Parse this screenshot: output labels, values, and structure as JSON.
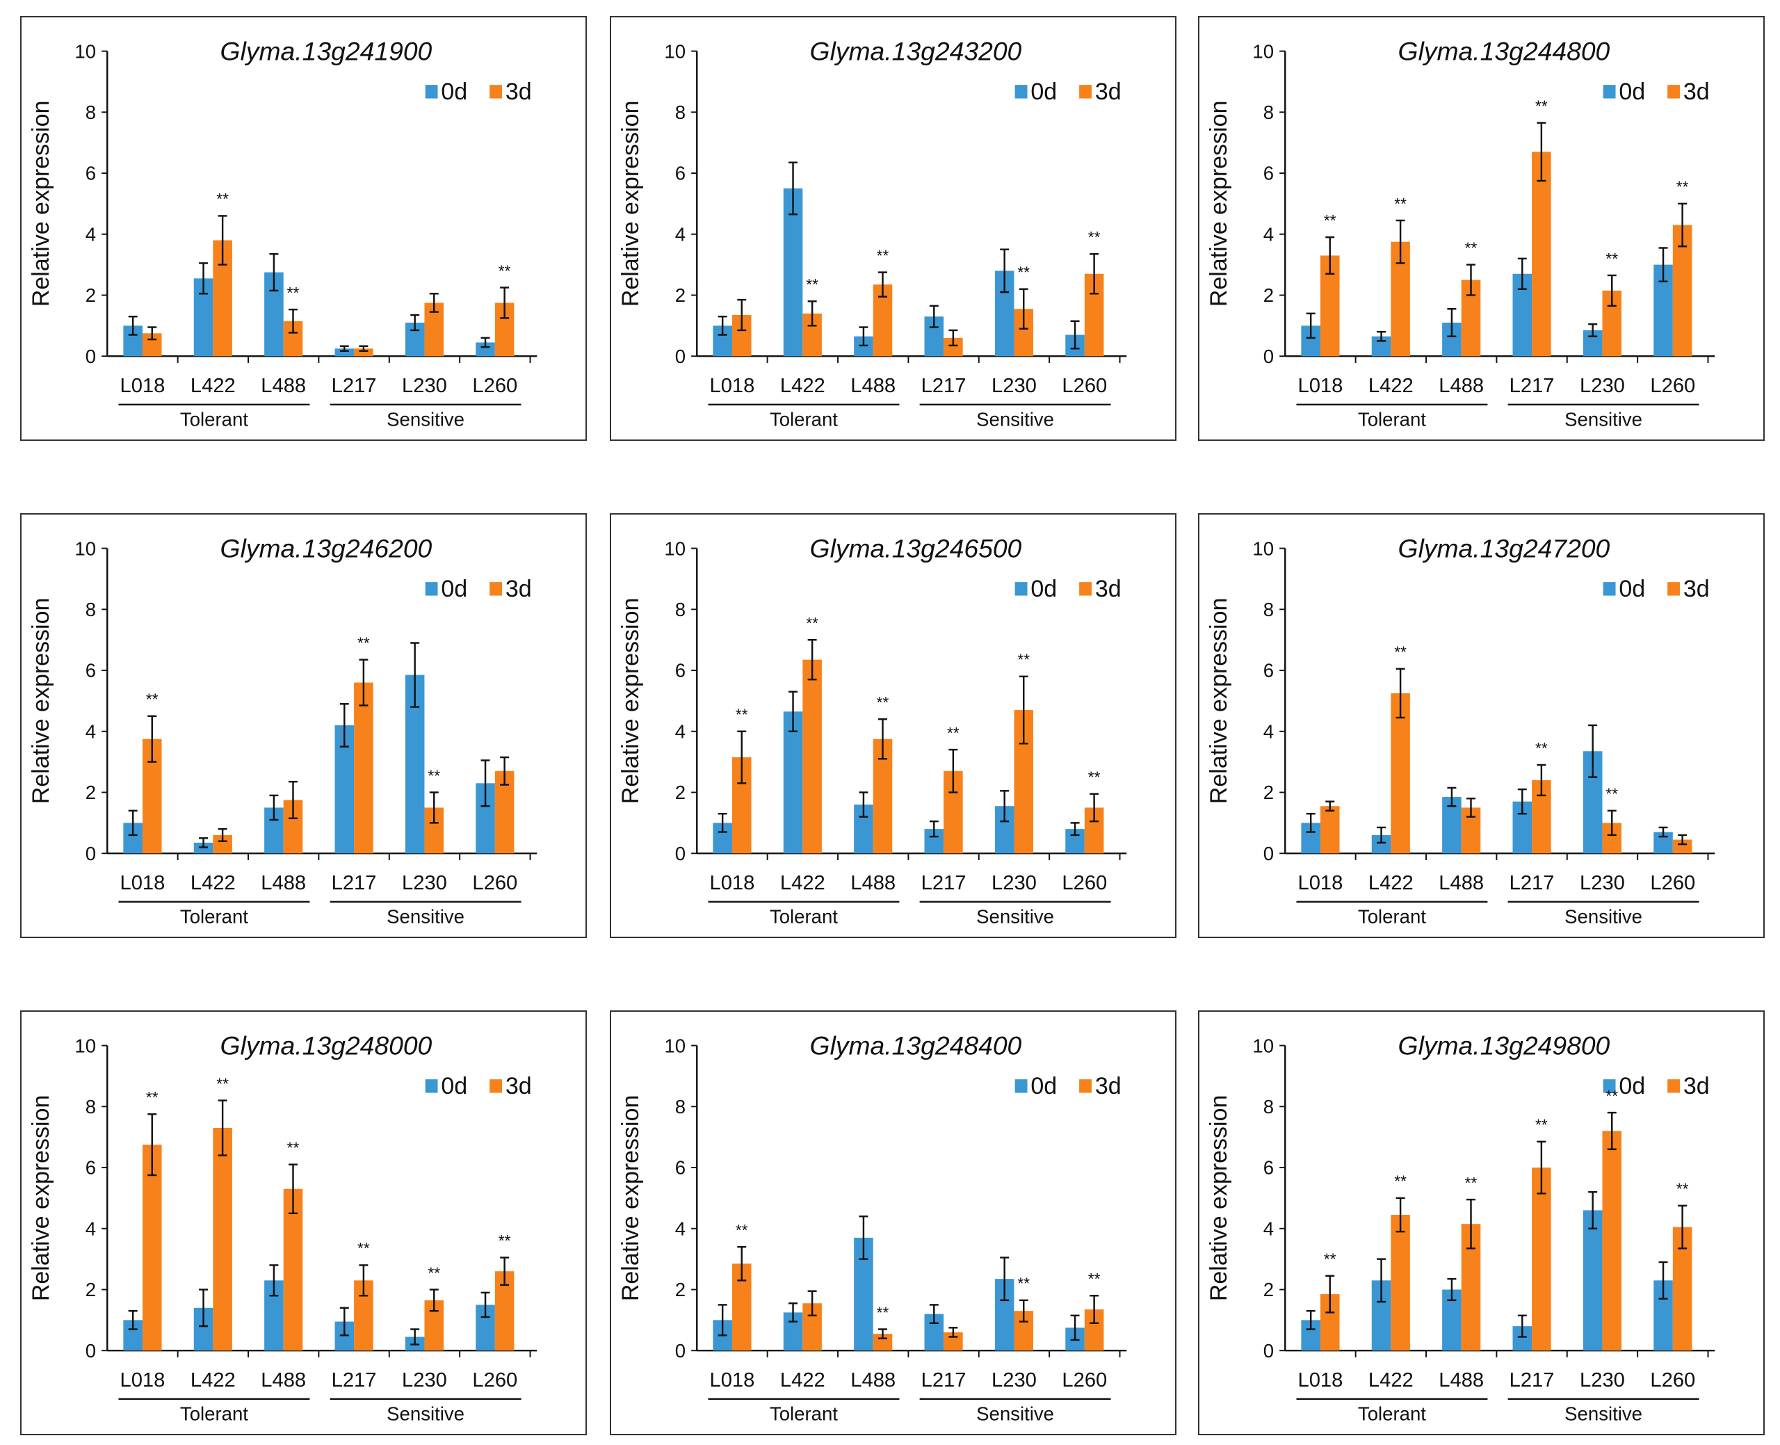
{
  "colors": {
    "d0": "#3a97d4",
    "d3": "#f7821b",
    "error": "#111111"
  },
  "chart_data": [
    {
      "type": "bar",
      "title": "Glyma.13g241900",
      "ylabel": "Relative expression",
      "ylim": [
        0,
        10
      ],
      "yticks": [
        "0",
        "2",
        "4",
        "6",
        "8",
        "10"
      ],
      "categories": [
        "L018",
        "L422",
        "L488",
        "L217",
        "L230",
        "L260"
      ],
      "groups": [
        {
          "label": "Tolerant"
        },
        {
          "label": "Sensitive"
        }
      ],
      "legend_position": "top-right",
      "series": [
        {
          "name": "0d",
          "values": [
            1.0,
            2.55,
            2.75,
            0.25,
            1.1,
            0.45
          ],
          "errors": [
            0.3,
            0.5,
            0.6,
            0.08,
            0.25,
            0.15
          ]
        },
        {
          "name": "3d",
          "values": [
            0.75,
            3.8,
            1.15,
            0.25,
            1.75,
            1.75
          ],
          "errors": [
            0.2,
            0.8,
            0.38,
            0.08,
            0.3,
            0.5
          ]
        }
      ],
      "significance": [
        [
          "",
          "",
          "",
          "",
          "",
          ""
        ],
        [
          "",
          "**",
          "**",
          "",
          "",
          "**"
        ]
      ]
    },
    {
      "type": "bar",
      "title": "Glyma.13g243200",
      "ylabel": "Relative expression",
      "ylim": [
        0,
        10
      ],
      "yticks": [
        "0",
        "2",
        "4",
        "6",
        "8",
        "10"
      ],
      "categories": [
        "L018",
        "L422",
        "L488",
        "L217",
        "L230",
        "L260"
      ],
      "groups": [
        {
          "label": "Tolerant"
        },
        {
          "label": "Sensitive"
        }
      ],
      "legend_position": "top-right",
      "series": [
        {
          "name": "0d",
          "values": [
            1.0,
            5.5,
            0.65,
            1.3,
            2.8,
            0.7
          ],
          "errors": [
            0.3,
            0.85,
            0.3,
            0.35,
            0.7,
            0.45
          ]
        },
        {
          "name": "3d",
          "values": [
            1.35,
            1.4,
            2.35,
            0.6,
            1.55,
            2.7
          ],
          "errors": [
            0.5,
            0.4,
            0.4,
            0.25,
            0.65,
            0.65
          ]
        }
      ],
      "significance": [
        [
          "",
          "",
          "",
          "",
          "",
          ""
        ],
        [
          "",
          "**",
          "**",
          "",
          "**",
          "**"
        ]
      ]
    },
    {
      "type": "bar",
      "title": "Glyma.13g244800",
      "ylabel": "Relative expression",
      "ylim": [
        0,
        10
      ],
      "yticks": [
        "0",
        "2",
        "4",
        "6",
        "8",
        "10"
      ],
      "categories": [
        "L018",
        "L422",
        "L488",
        "L217",
        "L230",
        "L260"
      ],
      "groups": [
        {
          "label": "Tolerant"
        },
        {
          "label": "Sensitive"
        }
      ],
      "legend_position": "top-right",
      "series": [
        {
          "name": "0d",
          "values": [
            1.0,
            0.65,
            1.1,
            2.7,
            0.85,
            3.0
          ],
          "errors": [
            0.4,
            0.15,
            0.45,
            0.5,
            0.2,
            0.55
          ]
        },
        {
          "name": "3d",
          "values": [
            3.3,
            3.75,
            2.5,
            6.7,
            2.15,
            4.3
          ],
          "errors": [
            0.6,
            0.7,
            0.5,
            0.95,
            0.5,
            0.7
          ]
        }
      ],
      "significance": [
        [
          "",
          "",
          "",
          "",
          "",
          ""
        ],
        [
          "**",
          "**",
          "**",
          "**",
          "**",
          "**"
        ]
      ]
    },
    {
      "type": "bar",
      "title": "Glyma.13g246200",
      "ylabel": "Relative expression",
      "ylim": [
        0,
        10
      ],
      "yticks": [
        "0",
        "2",
        "4",
        "6",
        "8",
        "10"
      ],
      "categories": [
        "L018",
        "L422",
        "L488",
        "L217",
        "L230",
        "L260"
      ],
      "groups": [
        {
          "label": "Tolerant"
        },
        {
          "label": "Sensitive"
        }
      ],
      "legend_position": "top-right",
      "series": [
        {
          "name": "0d",
          "values": [
            1.0,
            0.35,
            1.5,
            4.2,
            5.85,
            2.3
          ],
          "errors": [
            0.4,
            0.15,
            0.4,
            0.7,
            1.05,
            0.75
          ]
        },
        {
          "name": "3d",
          "values": [
            3.75,
            0.6,
            1.75,
            5.6,
            1.5,
            2.7
          ],
          "errors": [
            0.75,
            0.2,
            0.6,
            0.75,
            0.5,
            0.45
          ]
        }
      ],
      "significance": [
        [
          "",
          "",
          "",
          "",
          "",
          ""
        ],
        [
          "**",
          "",
          "",
          "**",
          "**",
          ""
        ]
      ]
    },
    {
      "type": "bar",
      "title": "Glyma.13g246500",
      "ylabel": "Relative expression",
      "ylim": [
        0,
        10
      ],
      "yticks": [
        "0",
        "2",
        "4",
        "6",
        "8",
        "10"
      ],
      "categories": [
        "L018",
        "L422",
        "L488",
        "L217",
        "L230",
        "L260"
      ],
      "groups": [
        {
          "label": "Tolerant"
        },
        {
          "label": "Sensitive"
        }
      ],
      "legend_position": "top-right",
      "series": [
        {
          "name": "0d",
          "values": [
            1.0,
            4.65,
            1.6,
            0.8,
            1.55,
            0.8
          ],
          "errors": [
            0.3,
            0.65,
            0.4,
            0.25,
            0.5,
            0.2
          ]
        },
        {
          "name": "3d",
          "values": [
            3.15,
            6.35,
            3.75,
            2.7,
            4.7,
            1.5
          ],
          "errors": [
            0.85,
            0.65,
            0.65,
            0.7,
            1.1,
            0.45
          ]
        }
      ],
      "significance": [
        [
          "",
          "",
          "",
          "",
          "",
          ""
        ],
        [
          "**",
          "**",
          "**",
          "**",
          "**",
          "**"
        ]
      ]
    },
    {
      "type": "bar",
      "title": "Glyma.13g247200",
      "ylabel": "Relative expression",
      "ylim": [
        0,
        10
      ],
      "yticks": [
        "0",
        "2",
        "4",
        "6",
        "8",
        "10"
      ],
      "categories": [
        "L018",
        "L422",
        "L488",
        "L217",
        "L230",
        "L260"
      ],
      "groups": [
        {
          "label": "Tolerant"
        },
        {
          "label": "Sensitive"
        }
      ],
      "legend_position": "top-right",
      "series": [
        {
          "name": "0d",
          "values": [
            1.0,
            0.6,
            1.85,
            1.7,
            3.35,
            0.7
          ],
          "errors": [
            0.3,
            0.25,
            0.3,
            0.4,
            0.85,
            0.15
          ]
        },
        {
          "name": "3d",
          "values": [
            1.55,
            5.25,
            1.5,
            2.4,
            1.0,
            0.45
          ],
          "errors": [
            0.15,
            0.8,
            0.3,
            0.5,
            0.4,
            0.15
          ]
        }
      ],
      "significance": [
        [
          "",
          "",
          "",
          "",
          "",
          ""
        ],
        [
          "",
          "**",
          "",
          "**",
          "**",
          ""
        ]
      ]
    },
    {
      "type": "bar",
      "title": "Glyma.13g248000",
      "ylabel": "Relative expression",
      "ylim": [
        0,
        10
      ],
      "yticks": [
        "0",
        "2",
        "4",
        "6",
        "8",
        "10"
      ],
      "categories": [
        "L018",
        "L422",
        "L488",
        "L217",
        "L230",
        "L260"
      ],
      "groups": [
        {
          "label": "Tolerant"
        },
        {
          "label": "Sensitive"
        }
      ],
      "legend_position": "top-right",
      "series": [
        {
          "name": "0d",
          "values": [
            1.0,
            1.4,
            2.3,
            0.95,
            0.45,
            1.5
          ],
          "errors": [
            0.3,
            0.6,
            0.5,
            0.45,
            0.25,
            0.4
          ]
        },
        {
          "name": "3d",
          "values": [
            6.75,
            7.3,
            5.3,
            2.3,
            1.65,
            2.6
          ],
          "errors": [
            1.0,
            0.9,
            0.8,
            0.5,
            0.35,
            0.45
          ]
        }
      ],
      "significance": [
        [
          "",
          "",
          "",
          "",
          "",
          ""
        ],
        [
          "**",
          "**",
          "**",
          "**",
          "**",
          "**"
        ]
      ]
    },
    {
      "type": "bar",
      "title": "Glyma.13g248400",
      "ylabel": "Relative expression",
      "ylim": [
        0,
        10
      ],
      "yticks": [
        "0",
        "2",
        "4",
        "6",
        "8",
        "10"
      ],
      "categories": [
        "L018",
        "L422",
        "L488",
        "L217",
        "L230",
        "L260"
      ],
      "groups": [
        {
          "label": "Tolerant"
        },
        {
          "label": "Sensitive"
        }
      ],
      "legend_position": "top-right",
      "series": [
        {
          "name": "0d",
          "values": [
            1.0,
            1.25,
            3.7,
            1.2,
            2.35,
            0.75
          ],
          "errors": [
            0.5,
            0.3,
            0.7,
            0.3,
            0.7,
            0.4
          ]
        },
        {
          "name": "3d",
          "values": [
            2.85,
            1.55,
            0.55,
            0.6,
            1.3,
            1.35
          ],
          "errors": [
            0.55,
            0.4,
            0.15,
            0.15,
            0.35,
            0.45
          ]
        }
      ],
      "significance": [
        [
          "",
          "",
          "",
          "",
          "",
          ""
        ],
        [
          "**",
          "",
          "**",
          "",
          "**",
          "**"
        ]
      ]
    },
    {
      "type": "bar",
      "title": "Glyma.13g249800",
      "ylabel": "Relative expression",
      "ylim": [
        0,
        10
      ],
      "yticks": [
        "0",
        "2",
        "4",
        "6",
        "8",
        "10"
      ],
      "categories": [
        "L018",
        "L422",
        "L488",
        "L217",
        "L230",
        "L260"
      ],
      "groups": [
        {
          "label": "Tolerant"
        },
        {
          "label": "Sensitive"
        }
      ],
      "legend_position": "top-right",
      "series": [
        {
          "name": "0d",
          "values": [
            1.0,
            2.3,
            2.0,
            0.8,
            4.6,
            2.3
          ],
          "errors": [
            0.3,
            0.7,
            0.35,
            0.35,
            0.6,
            0.6
          ]
        },
        {
          "name": "3d",
          "values": [
            1.85,
            4.45,
            4.15,
            6.0,
            7.2,
            4.05
          ],
          "errors": [
            0.6,
            0.55,
            0.8,
            0.85,
            0.6,
            0.7
          ]
        }
      ],
      "significance": [
        [
          "",
          "",
          "",
          "",
          "",
          ""
        ],
        [
          "**",
          "**",
          "**",
          "**",
          "**",
          "**"
        ]
      ]
    }
  ]
}
